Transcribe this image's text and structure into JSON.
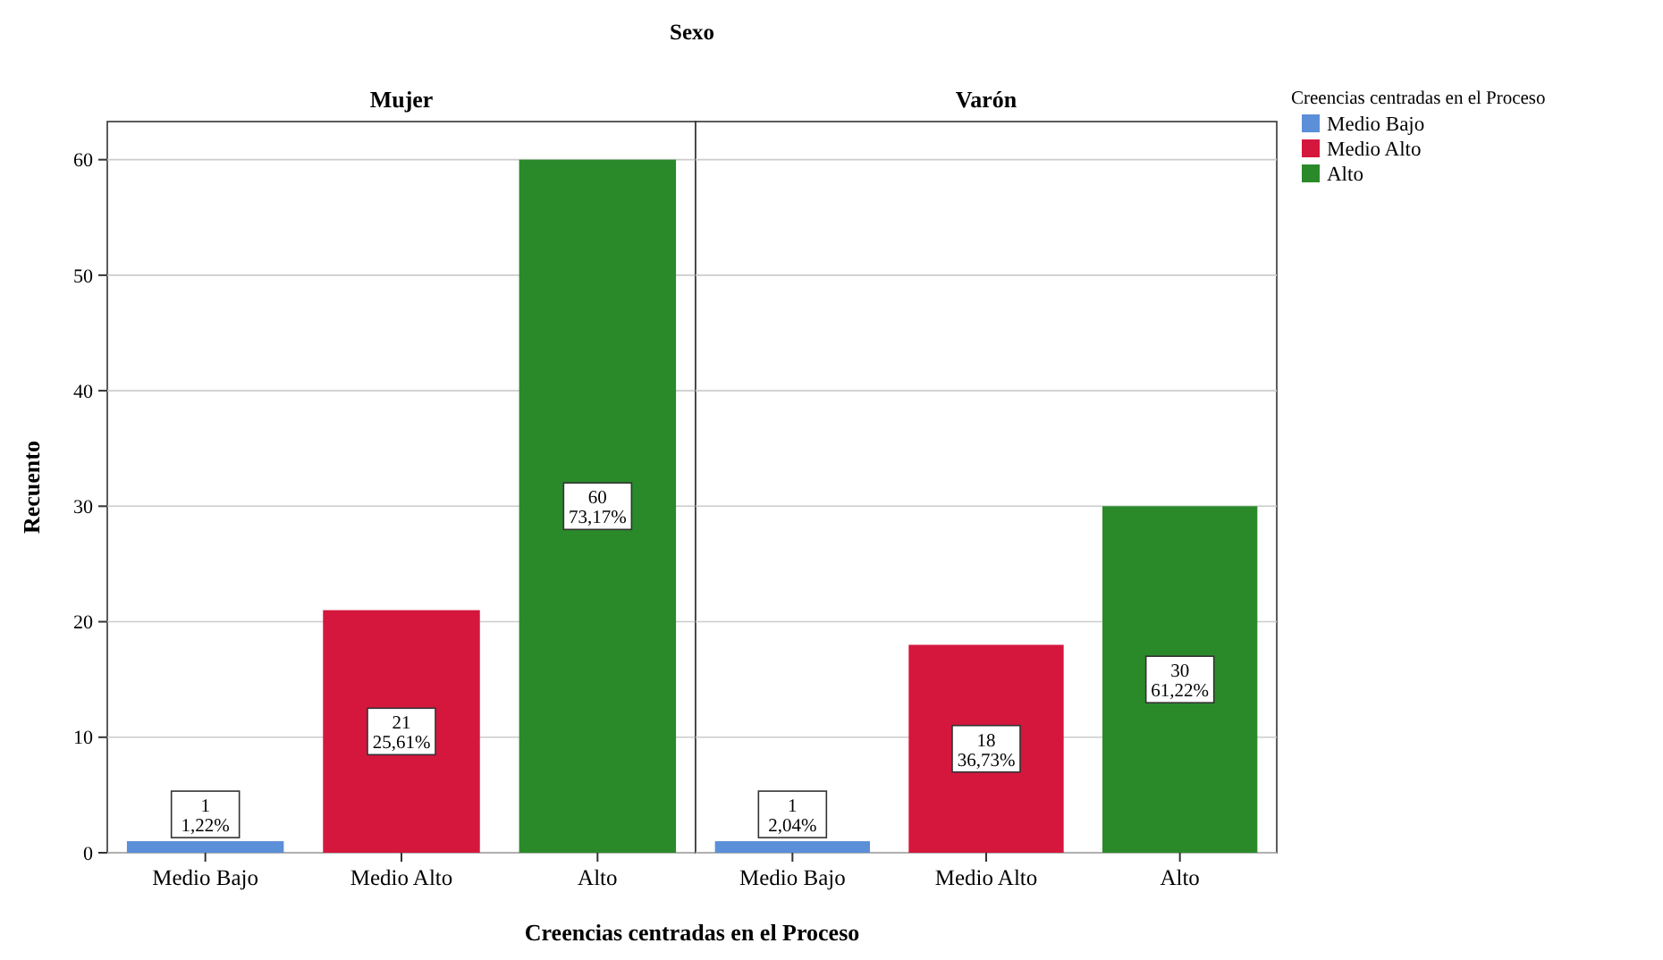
{
  "chart_data": [
    {
      "type": "bar",
      "title": "Mujer",
      "annotations": [
        "Sexo"
      ],
      "ylabel": "Recuento",
      "xlabel": "Creencias centradas en el Proceso",
      "categories": [
        "Medio Bajo",
        "Medio Alto",
        "Alto"
      ],
      "stacked": true,
      "series": [
        {
          "color": "#5b8fd8",
          "values": [
            1,
            null,
            null
          ],
          "value_labels": [
            "1\n1,22%",
            null,
            null
          ]
        },
        {
          "color": "#d5173d",
          "values": [
            null,
            21,
            null
          ],
          "value_labels": [
            null,
            "21\n25,61%",
            null
          ]
        },
        {
          "color": "#2a8a2a",
          "values": [
            null,
            null,
            60
          ],
          "value_labels": [
            null,
            null,
            "60\n73,17%"
          ]
        }
      ],
      "ylim": [
        0,
        63.3
      ],
      "yticks": [
        0,
        10,
        20,
        30,
        40,
        50,
        60
      ],
      "grid": "y"
    },
    {
      "type": "bar",
      "title": "Varón",
      "categories": [
        "Medio Bajo",
        "Medio Alto",
        "Alto"
      ],
      "stacked": true,
      "series": [
        {
          "name": "Medio Bajo",
          "color": "#5b8fd8",
          "values": [
            1,
            null,
            null
          ],
          "value_labels": [
            "1\n2,04%",
            null,
            null
          ]
        },
        {
          "name": "Medio Alto",
          "color": "#d5173d",
          "values": [
            null,
            18,
            null
          ],
          "value_labels": [
            null,
            "18\n36,73%",
            null
          ]
        },
        {
          "name": "Alto",
          "color": "#2a8a2a",
          "values": [
            null,
            null,
            30
          ],
          "value_labels": [
            null,
            null,
            "30\n61,22%"
          ]
        }
      ],
      "ylim": [
        0,
        63.3
      ],
      "yticks": [
        0,
        10,
        20,
        30,
        40,
        50,
        60
      ],
      "grid": "y",
      "tick_labels": "x",
      "legend": "right",
      "legend_title": "Creencias centradas en el Proceso"
    }
  ]
}
